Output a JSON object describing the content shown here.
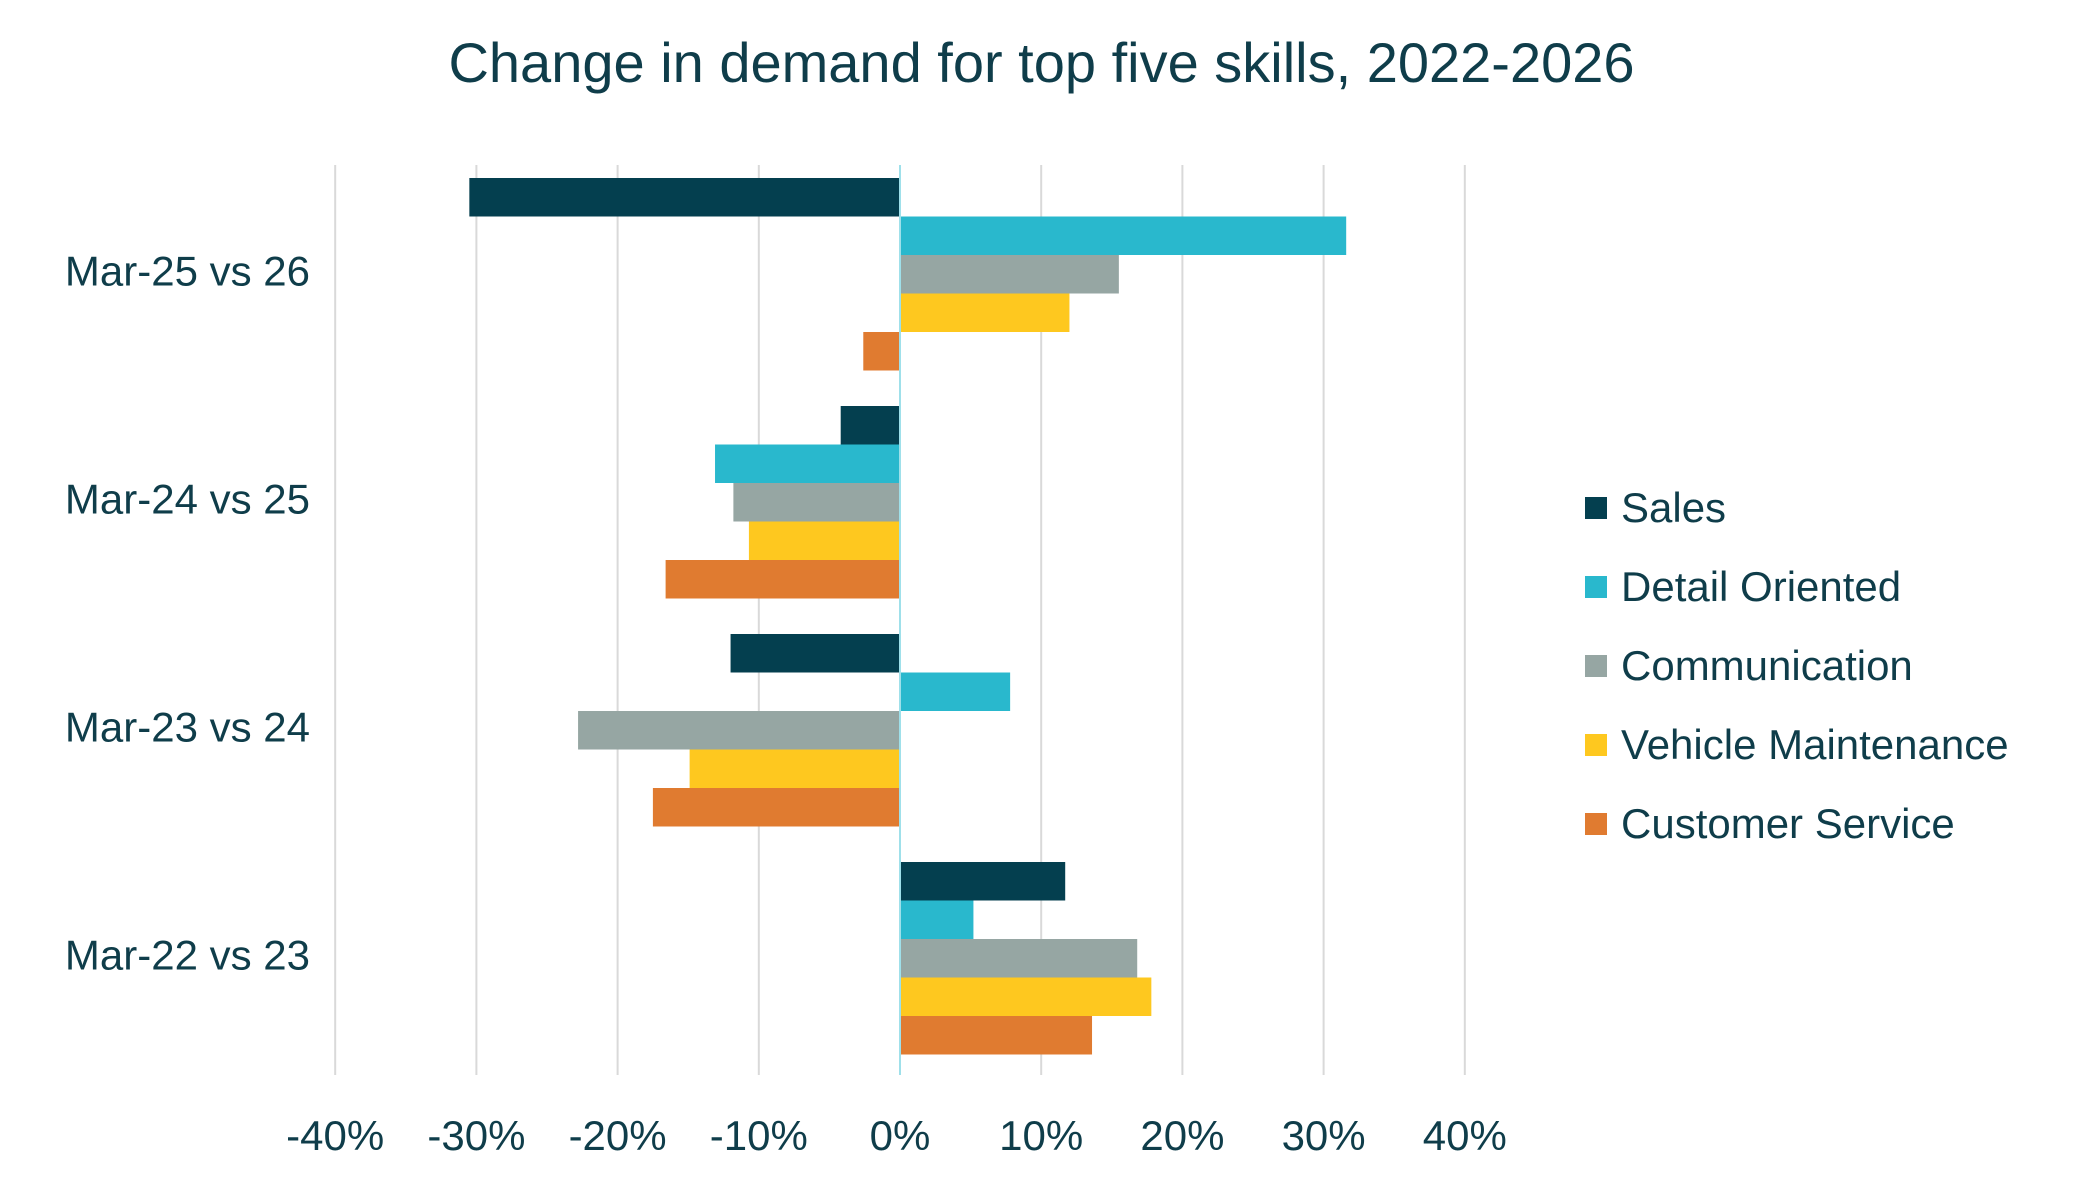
{
  "chart_data": {
    "type": "bar",
    "orientation": "horizontal",
    "title": "Change in demand for top five skills, 2022-2026",
    "categories": [
      "Mar-25 vs 26",
      "Mar-24 vs 25",
      "Mar-23 vs 24",
      "Mar-22 vs 23"
    ],
    "series": [
      {
        "name": "Sales",
        "color": "#043f4f",
        "values": [
          -30.5,
          -4.2,
          -12.0,
          11.7
        ]
      },
      {
        "name": "Detail Oriented",
        "color": "#29b8cd",
        "values": [
          31.6,
          -13.1,
          7.8,
          5.2
        ]
      },
      {
        "name": "Communication",
        "color": "#96a6a3",
        "values": [
          15.5,
          -11.8,
          -22.8,
          16.8
        ]
      },
      {
        "name": "Vehicle Maintenance",
        "color": "#fec81f",
        "values": [
          12.0,
          -10.7,
          -14.9,
          17.8
        ]
      },
      {
        "name": "Customer Service",
        "color": "#e07b30",
        "values": [
          -2.6,
          -16.6,
          -17.5,
          13.6
        ]
      }
    ],
    "xlim": [
      -40,
      40
    ],
    "xticks": [
      -40,
      -30,
      -20,
      -10,
      0,
      10,
      20,
      30,
      40
    ],
    "xtick_labels": [
      "-40%",
      "-30%",
      "-20%",
      "-10%",
      "0%",
      "10%",
      "20%",
      "30%",
      "40%"
    ],
    "grid": "vertical",
    "legend_position": "right"
  }
}
